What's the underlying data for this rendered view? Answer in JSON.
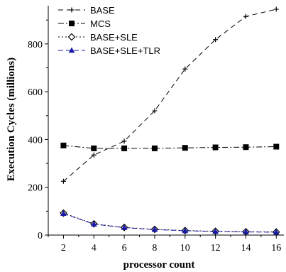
{
  "chart_data": {
    "type": "line",
    "xlabel": "processor count",
    "ylabel": "Execution Cycles (millions)",
    "x": [
      2,
      4,
      6,
      8,
      10,
      12,
      14,
      16
    ],
    "xticks": [
      "2",
      "4",
      "6",
      "8",
      "10",
      "12",
      "14",
      "16"
    ],
    "yticks": [
      "0",
      "200",
      "400",
      "600",
      "800"
    ],
    "xlim": [
      1,
      16.5
    ],
    "ylim": [
      0,
      960
    ],
    "legend_position": "top-left",
    "series": [
      {
        "name": "BASE",
        "values": [
          225,
          335,
          393,
          520,
          695,
          818,
          915,
          945
        ],
        "marker": "plus",
        "dash": "7,5",
        "color": "#000000",
        "marker_fill": "none"
      },
      {
        "name": "MCS",
        "values": [
          375,
          363,
          363,
          363,
          365,
          367,
          368,
          370
        ],
        "marker": "square",
        "dash": "8,3,2,3",
        "color": "#000000",
        "marker_fill": "#000000"
      },
      {
        "name": "BASE+SLE",
        "values": [
          92,
          47,
          32,
          24,
          19,
          16,
          14,
          13
        ],
        "marker": "diamond",
        "dash": "2,3",
        "color": "#000000",
        "marker_fill": "#ffffff"
      },
      {
        "name": "BASE+SLE+TLR",
        "values": [
          90,
          46,
          31,
          23,
          18,
          15,
          13,
          12
        ],
        "marker": "triangle",
        "dash": "7,4",
        "color": "#1a1aa6",
        "marker_fill": "#1a1aa6"
      }
    ]
  }
}
